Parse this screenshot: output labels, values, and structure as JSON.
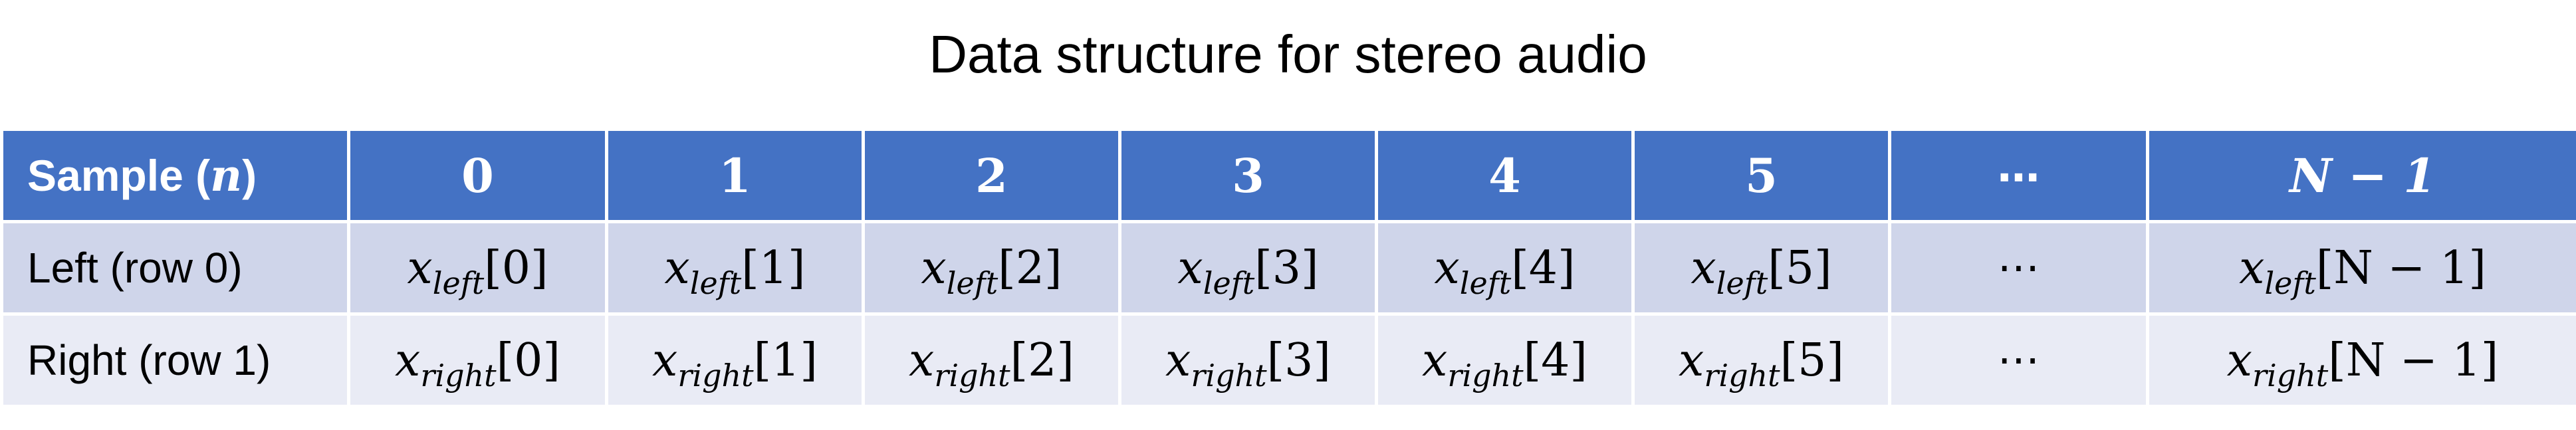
{
  "title": "Data structure for stereo audio",
  "header": {
    "label_prefix": "Sample (",
    "label_var": "n",
    "label_suffix": ")",
    "columns": [
      "0",
      "1",
      "2",
      "3",
      "4",
      "5",
      "⋯",
      "N − 1"
    ]
  },
  "rows": [
    {
      "label": "Left (row 0)",
      "var": "x",
      "subscript": "left",
      "indices": [
        "[0]",
        "[1]",
        "[2]",
        "[3]",
        "[4]",
        "[5]",
        "⋯",
        "[N − 1]"
      ]
    },
    {
      "label": "Right (row 1)",
      "var": "x",
      "subscript": "right",
      "indices": [
        "[0]",
        "[1]",
        "[2]",
        "[3]",
        "[4]",
        "[5]",
        "⋯",
        "[N − 1]"
      ]
    }
  ],
  "colors": {
    "header_bg": "#4472c4",
    "row_left_bg": "#cfd5ea",
    "row_right_bg": "#e9ebf5",
    "header_text": "#ffffff"
  }
}
